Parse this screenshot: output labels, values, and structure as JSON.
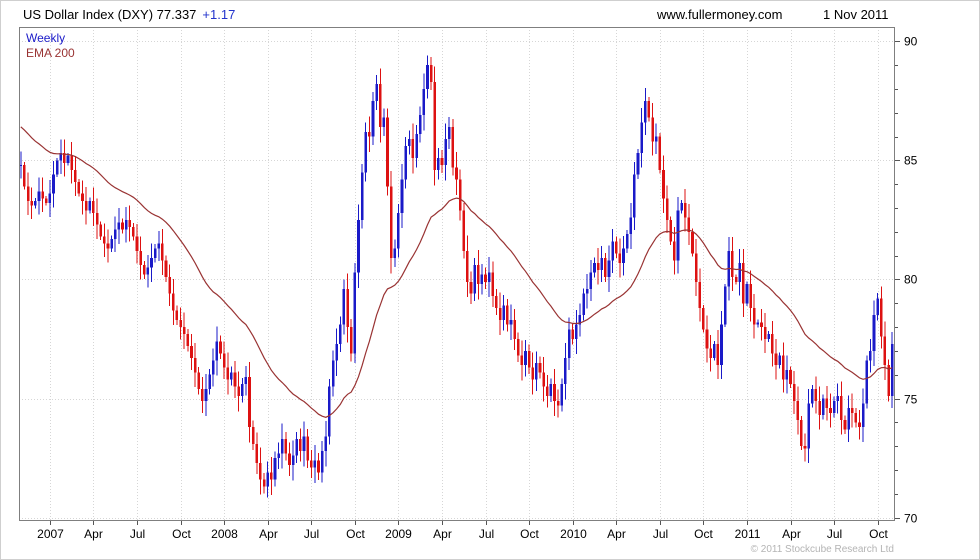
{
  "header": {
    "title_text": "US Dollar Index (DXY) 77.337",
    "instrument": "US Dollar Index (DXY)",
    "last_price": "77.337",
    "change": "+1.17",
    "website": "www.fullermoney.com",
    "date": "1 Nov 2011"
  },
  "legend": {
    "weekly_label": "Weekly",
    "ema_label": "EMA 200"
  },
  "footer": {
    "copyright": "© 2011 Stockcube Research Ltd"
  },
  "colors": {
    "up_candle": "#1a1ac8",
    "down_candle": "#dd1111",
    "ema_line": "#993333",
    "change_text": "#2233cc",
    "grid": "#d6d6d6",
    "frame": "#7f7f7f",
    "tick": "#555555",
    "axis_text": "#000000"
  },
  "chart_data": {
    "type": "candlestick",
    "title": "US Dollar Index (DXY) Weekly with EMA 200",
    "x_start": "Nov 2006",
    "x_end": "1 Nov 2011",
    "ylim": [
      69.9,
      90.6
    ],
    "y_ticks": [
      70,
      75,
      80,
      85,
      90
    ],
    "y_minor_step": 1,
    "grid": "dotted",
    "legend_position": "top-left",
    "x_ticks": [
      {
        "i": 8,
        "label": "2007"
      },
      {
        "i": 20,
        "label": "Apr"
      },
      {
        "i": 32,
        "label": "Jul"
      },
      {
        "i": 44,
        "label": "Oct"
      },
      {
        "i": 56,
        "label": "2008"
      },
      {
        "i": 68,
        "label": "Apr"
      },
      {
        "i": 80,
        "label": "Jul"
      },
      {
        "i": 92,
        "label": "Oct"
      },
      {
        "i": 104,
        "label": "2009"
      },
      {
        "i": 116,
        "label": "Apr"
      },
      {
        "i": 128,
        "label": "Jul"
      },
      {
        "i": 140,
        "label": "Oct"
      },
      {
        "i": 152,
        "label": "2010"
      },
      {
        "i": 164,
        "label": "Apr"
      },
      {
        "i": 176,
        "label": "Jul"
      },
      {
        "i": 188,
        "label": "Oct"
      },
      {
        "i": 200,
        "label": "2011"
      },
      {
        "i": 212,
        "label": "Apr"
      },
      {
        "i": 224,
        "label": "Jul"
      },
      {
        "i": 236,
        "label": "Oct"
      }
    ],
    "weekly_closes": [
      84.8,
      83.9,
      83.3,
      83.1,
      83.3,
      83.7,
      83.4,
      83.2,
      83.6,
      84.4,
      85.0,
      85.3,
      84.9,
      85.2,
      84.6,
      84.1,
      83.6,
      83.3,
      82.9,
      83.3,
      82.8,
      82.3,
      81.8,
      81.5,
      81.3,
      81.7,
      82.1,
      82.4,
      82.1,
      82.5,
      82.2,
      81.8,
      81.2,
      80.6,
      80.2,
      80.5,
      80.9,
      81.3,
      81.5,
      80.8,
      80.1,
      79.4,
      78.7,
      78.3,
      78.0,
      77.7,
      77.2,
      76.7,
      76.1,
      75.4,
      74.9,
      75.4,
      76.0,
      76.6,
      77.4,
      76.9,
      76.3,
      75.8,
      76.1,
      75.5,
      75.1,
      75.6,
      75.9,
      73.8,
      73.1,
      72.3,
      71.6,
      71.3,
      71.9,
      71.6,
      72.5,
      72.7,
      73.3,
      72.7,
      72.2,
      72.6,
      73.3,
      72.8,
      73.4,
      72.4,
      72.1,
      72.4,
      71.9,
      72.8,
      73.4,
      75.5,
      76.6,
      77.3,
      78.1,
      79.6,
      78.0,
      76.9,
      80.3,
      82.5,
      84.5,
      86.2,
      86.0,
      87.5,
      88.2,
      86.4,
      86.8,
      83.9,
      80.9,
      81.3,
      82.8,
      84.2,
      85.6,
      85.9,
      85.1,
      86.1,
      86.9,
      88.0,
      89.0,
      88.3,
      84.6,
      85.1,
      84.8,
      85.9,
      86.4,
      84.7,
      84.2,
      82.9,
      81.2,
      79.9,
      79.4,
      80.6,
      79.8,
      80.2,
      79.9,
      80.3,
      79.3,
      78.8,
      78.3,
      78.9,
      78.1,
      78.3,
      77.5,
      76.8,
      76.4,
      77.0,
      76.3,
      75.8,
      76.5,
      76.1,
      75.5,
      75.1,
      75.6,
      74.9,
      74.7,
      75.6,
      76.7,
      77.9,
      77.5,
      78.1,
      78.5,
      79.4,
      79.6,
      80.3,
      80.7,
      80.4,
      80.9,
      80.1,
      80.8,
      81.6,
      81.1,
      80.7,
      81.3,
      81.9,
      82.6,
      84.4,
      85.3,
      86.6,
      87.5,
      86.8,
      85.8,
      86.0,
      84.6,
      83.4,
      82.5,
      81.6,
      80.8,
      82.9,
      83.2,
      82.6,
      82.0,
      81.1,
      79.9,
      78.8,
      77.9,
      77.1,
      76.7,
      77.3,
      76.4,
      78.1,
      79.7,
      81.2,
      80.1,
      79.9,
      80.7,
      79.0,
      79.8,
      78.8,
      78.1,
      78.2,
      78.0,
      77.5,
      77.7,
      76.9,
      76.4,
      76.8,
      75.8,
      76.2,
      75.6,
      74.9,
      74.1,
      73.0,
      72.9,
      74.8,
      75.4,
      74.9,
      74.3,
      75.0,
      74.6,
      74.4,
      74.9,
      75.1,
      74.1,
      73.7,
      74.6,
      74.4,
      74.0,
      73.8,
      74.8,
      76.6,
      77.0,
      78.5,
      79.2,
      77.6,
      76.4,
      75.1,
      77.3
    ],
    "ema": {
      "label": "EMA 200",
      "smoothing_weeks": 36,
      "seed": 86.5
    }
  }
}
